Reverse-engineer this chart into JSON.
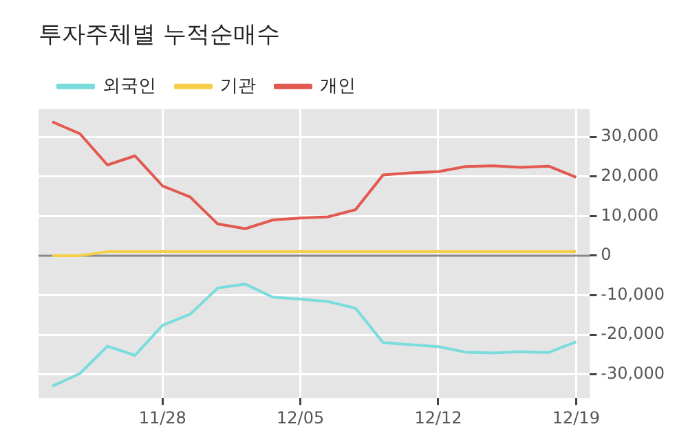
{
  "chart_data": {
    "type": "line",
    "title": "투자주체별 누적순매수",
    "categories": [
      null,
      null,
      null,
      null,
      "11/28",
      null,
      null,
      null,
      null,
      "12/05",
      null,
      null,
      null,
      null,
      "12/12",
      null,
      null,
      null,
      null,
      "12/19"
    ],
    "series": [
      {
        "name": "외국인",
        "color": "#7adcdc",
        "values": [
          -33000,
          -29800,
          -22900,
          -25200,
          -17600,
          -14800,
          -8200,
          -7200,
          -10500,
          -11000,
          -11600,
          -13300,
          -22000,
          -22500,
          -23000,
          -24400,
          -24600,
          -24300,
          -24500,
          -21800
        ]
      },
      {
        "name": "기관",
        "color": "#f5cf4a",
        "values": [
          0,
          0,
          1000,
          1000,
          1000,
          1000,
          1000,
          1000,
          1000,
          1000,
          1000,
          1000,
          1000,
          1000,
          1000,
          1000,
          1000,
          1000,
          1000,
          1000
        ]
      },
      {
        "name": "개인",
        "color": "#e2594f",
        "values": [
          33800,
          30800,
          22900,
          25200,
          17600,
          14800,
          8000,
          6800,
          9000,
          9500,
          9800,
          11600,
          20400,
          20900,
          21200,
          22500,
          22700,
          22300,
          22600,
          19800
        ]
      }
    ],
    "ylim": [
      -36000,
      37000
    ],
    "yticks": [
      {
        "value": -30000,
        "label": "-30,000"
      },
      {
        "value": -20000,
        "label": "-20,000"
      },
      {
        "value": -10000,
        "label": "-10,000"
      },
      0,
      {
        "value": 10000,
        "label": "10,000"
      },
      {
        "value": 20000,
        "label": "20,000"
      },
      {
        "value": 30000,
        "label": "30,000"
      }
    ],
    "ref_lines": [
      {
        "axis": "y",
        "value": 0,
        "color": "#888888"
      }
    ],
    "grid": true,
    "legend": "top left",
    "marker": "none",
    "line_style": "solid"
  }
}
